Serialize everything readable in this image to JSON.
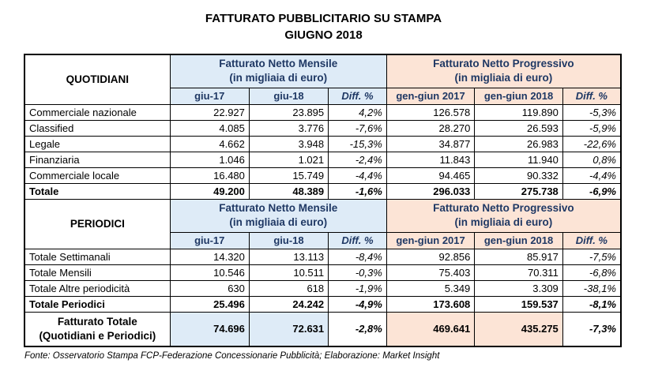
{
  "title": {
    "line1": "FATTURATO PUBBLICITARIO SU STAMPA",
    "line2": "GIUGNO 2018"
  },
  "colors": {
    "monthly_bg": "#DEEBF7",
    "progressive_bg": "#FCE4D6",
    "header_text": "#1F3864",
    "border": "#000000"
  },
  "table": {
    "quotidiani": {
      "section_label": "QUOTIDIANI",
      "monthly_header": {
        "line1": "Fatturato Netto Mensile",
        "line2": "(in migliaia di euro)"
      },
      "progressive_header": {
        "line1": "Fatturato Netto Progressivo",
        "line2": "(in migliaia di euro)"
      },
      "columns": [
        "giu-17",
        "giu-18",
        "Diff. %",
        "gen-giun 2017",
        "gen-giun 2018",
        "Diff. %"
      ],
      "rows": [
        {
          "label": "Commerciale nazionale",
          "values": [
            "22.927",
            "23.895",
            "4,2%",
            "126.578",
            "119.890",
            "-5,3%"
          ]
        },
        {
          "label": "Classified",
          "values": [
            "4.085",
            "3.776",
            "-7,6%",
            "28.270",
            "26.593",
            "-5,9%"
          ]
        },
        {
          "label": "Legale",
          "values": [
            "4.662",
            "3.948",
            "-15,3%",
            "34.877",
            "26.983",
            "-22,6%"
          ]
        },
        {
          "label": "Finanziaria",
          "values": [
            "1.046",
            "1.021",
            "-2,4%",
            "11.843",
            "11.940",
            "0,8%"
          ]
        },
        {
          "label": "Commerciale locale",
          "values": [
            "16.480",
            "15.749",
            "-4,4%",
            "94.465",
            "90.332",
            "-4,4%"
          ]
        },
        {
          "label": "Totale",
          "values": [
            "49.200",
            "48.389",
            "-1,6%",
            "296.033",
            "275.738",
            "-6,9%"
          ]
        }
      ]
    },
    "periodici": {
      "section_label": "PERIODICI",
      "monthly_header": {
        "line1": "Fatturato Netto Mensile",
        "line2": "(in migliaia di euro)"
      },
      "progressive_header": {
        "line1": "Fatturato Netto Progressivo",
        "line2": "(in migliaia di euro)"
      },
      "columns": [
        "giu-17",
        "giu-18",
        "Diff. %",
        "gen-giun 2017",
        "gen-giun 2018",
        "Diff. %"
      ],
      "rows": [
        {
          "label": "Totale Settimanali",
          "values": [
            "14.320",
            "13.113",
            "-8,4%",
            "92.856",
            "85.917",
            "-7,5%"
          ]
        },
        {
          "label": "Totale Mensili",
          "values": [
            "10.546",
            "10.511",
            "-0,3%",
            "75.403",
            "70.311",
            "-6,8%"
          ]
        },
        {
          "label": "Totale Altre periodicità",
          "values": [
            "630",
            "618",
            "-1,9%",
            "5.349",
            "3.309",
            "-38,1%"
          ]
        },
        {
          "label": "Totale Periodici",
          "values": [
            "25.496",
            "24.242",
            "-4,9%",
            "173.608",
            "159.537",
            "-8,1%"
          ]
        }
      ]
    },
    "total": {
      "label_line1": "Fatturato Totale",
      "label_line2": "(Quotidiani e Periodici)",
      "values": [
        "74.696",
        "72.631",
        "-2,8%",
        "469.641",
        "435.275",
        "-7,3%"
      ]
    }
  },
  "footer": {
    "source": "Fonte: Osservatorio Stampa FCP-Federazione Concessionarie Pubblicità; Elaborazione: Market Insight"
  }
}
